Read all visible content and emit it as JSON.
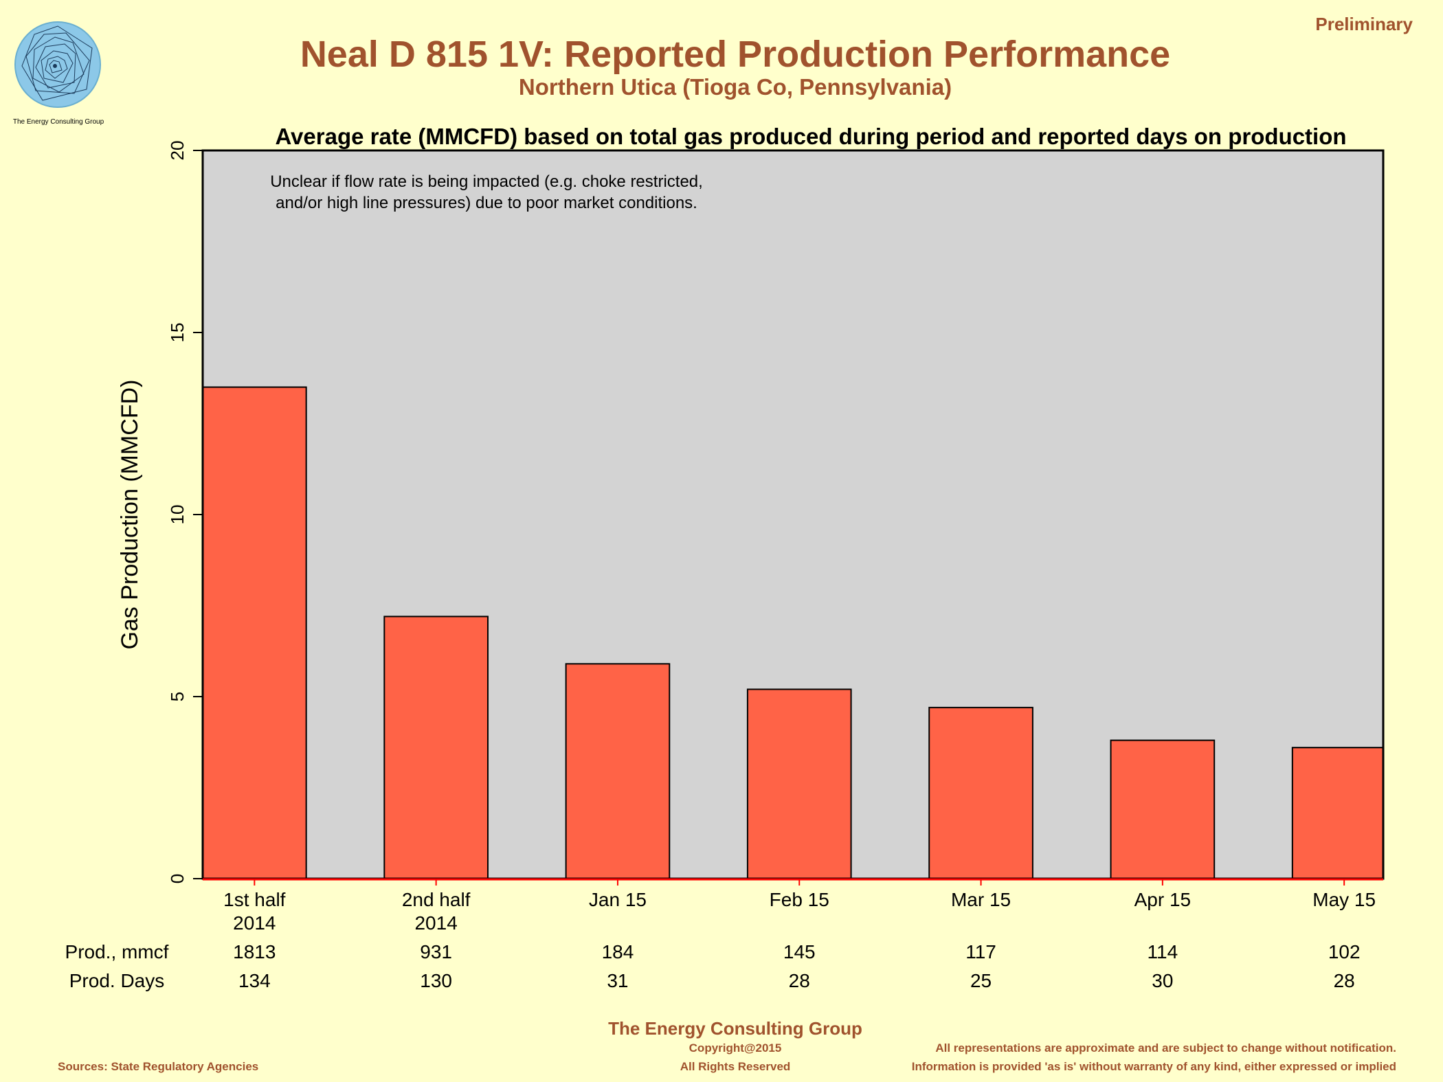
{
  "header": {
    "status": "Preliminary",
    "title": "Neal D 815 1V: Reported Production Performance",
    "subtitle": "Northern Utica (Tioga Co, Pennsylvania)"
  },
  "logo": {
    "caption": "The Energy Consulting Group",
    "accent_color": "#7EC8E3"
  },
  "chart_data": {
    "type": "bar",
    "title": "Average rate (MMCFD) based on total gas produced during period and reported days on production",
    "ylabel": "Gas Production (MMCFD)",
    "xlabel": "",
    "ylim": [
      0,
      20
    ],
    "yticks": [
      0,
      5,
      10,
      15,
      20
    ],
    "categories": [
      "1st half\n2014",
      "2nd half\n2014",
      "Jan 15",
      "Feb 15",
      "Mar 15",
      "Apr 15",
      "May 15"
    ],
    "values": [
      13.5,
      7.2,
      5.9,
      5.2,
      4.7,
      3.8,
      3.6
    ],
    "annotation": [
      "Unclear if flow rate is being impacted (e.g. choke restricted,",
      "and/or high line pressures) due to poor market conditions."
    ],
    "grid": false,
    "colors": {
      "bar": "#FF6347",
      "plot_background": "#D3D3D3",
      "tick": "#FF0000"
    }
  },
  "table": {
    "rows": [
      {
        "label": "Prod., mmcf",
        "values": [
          "1813",
          "931",
          "184",
          "145",
          "117",
          "114",
          "102"
        ]
      },
      {
        "label": "Prod. Days",
        "values": [
          "134",
          "130",
          "31",
          "28",
          "25",
          "30",
          "28"
        ]
      }
    ]
  },
  "footer": {
    "org": "The Energy Consulting Group",
    "copyright": "Copyright@2015",
    "rights": "All Rights Reserved",
    "sources": "Sources: State Regulatory Agencies",
    "disclaimer_1": "All representations are approximate and are subject to change without notification.",
    "disclaimer_2": "Information is provided 'as is' without warranty of any kind, either expressed or implied"
  },
  "colors": {
    "background": "#FFFFCC",
    "accent_text": "#A0522D"
  }
}
